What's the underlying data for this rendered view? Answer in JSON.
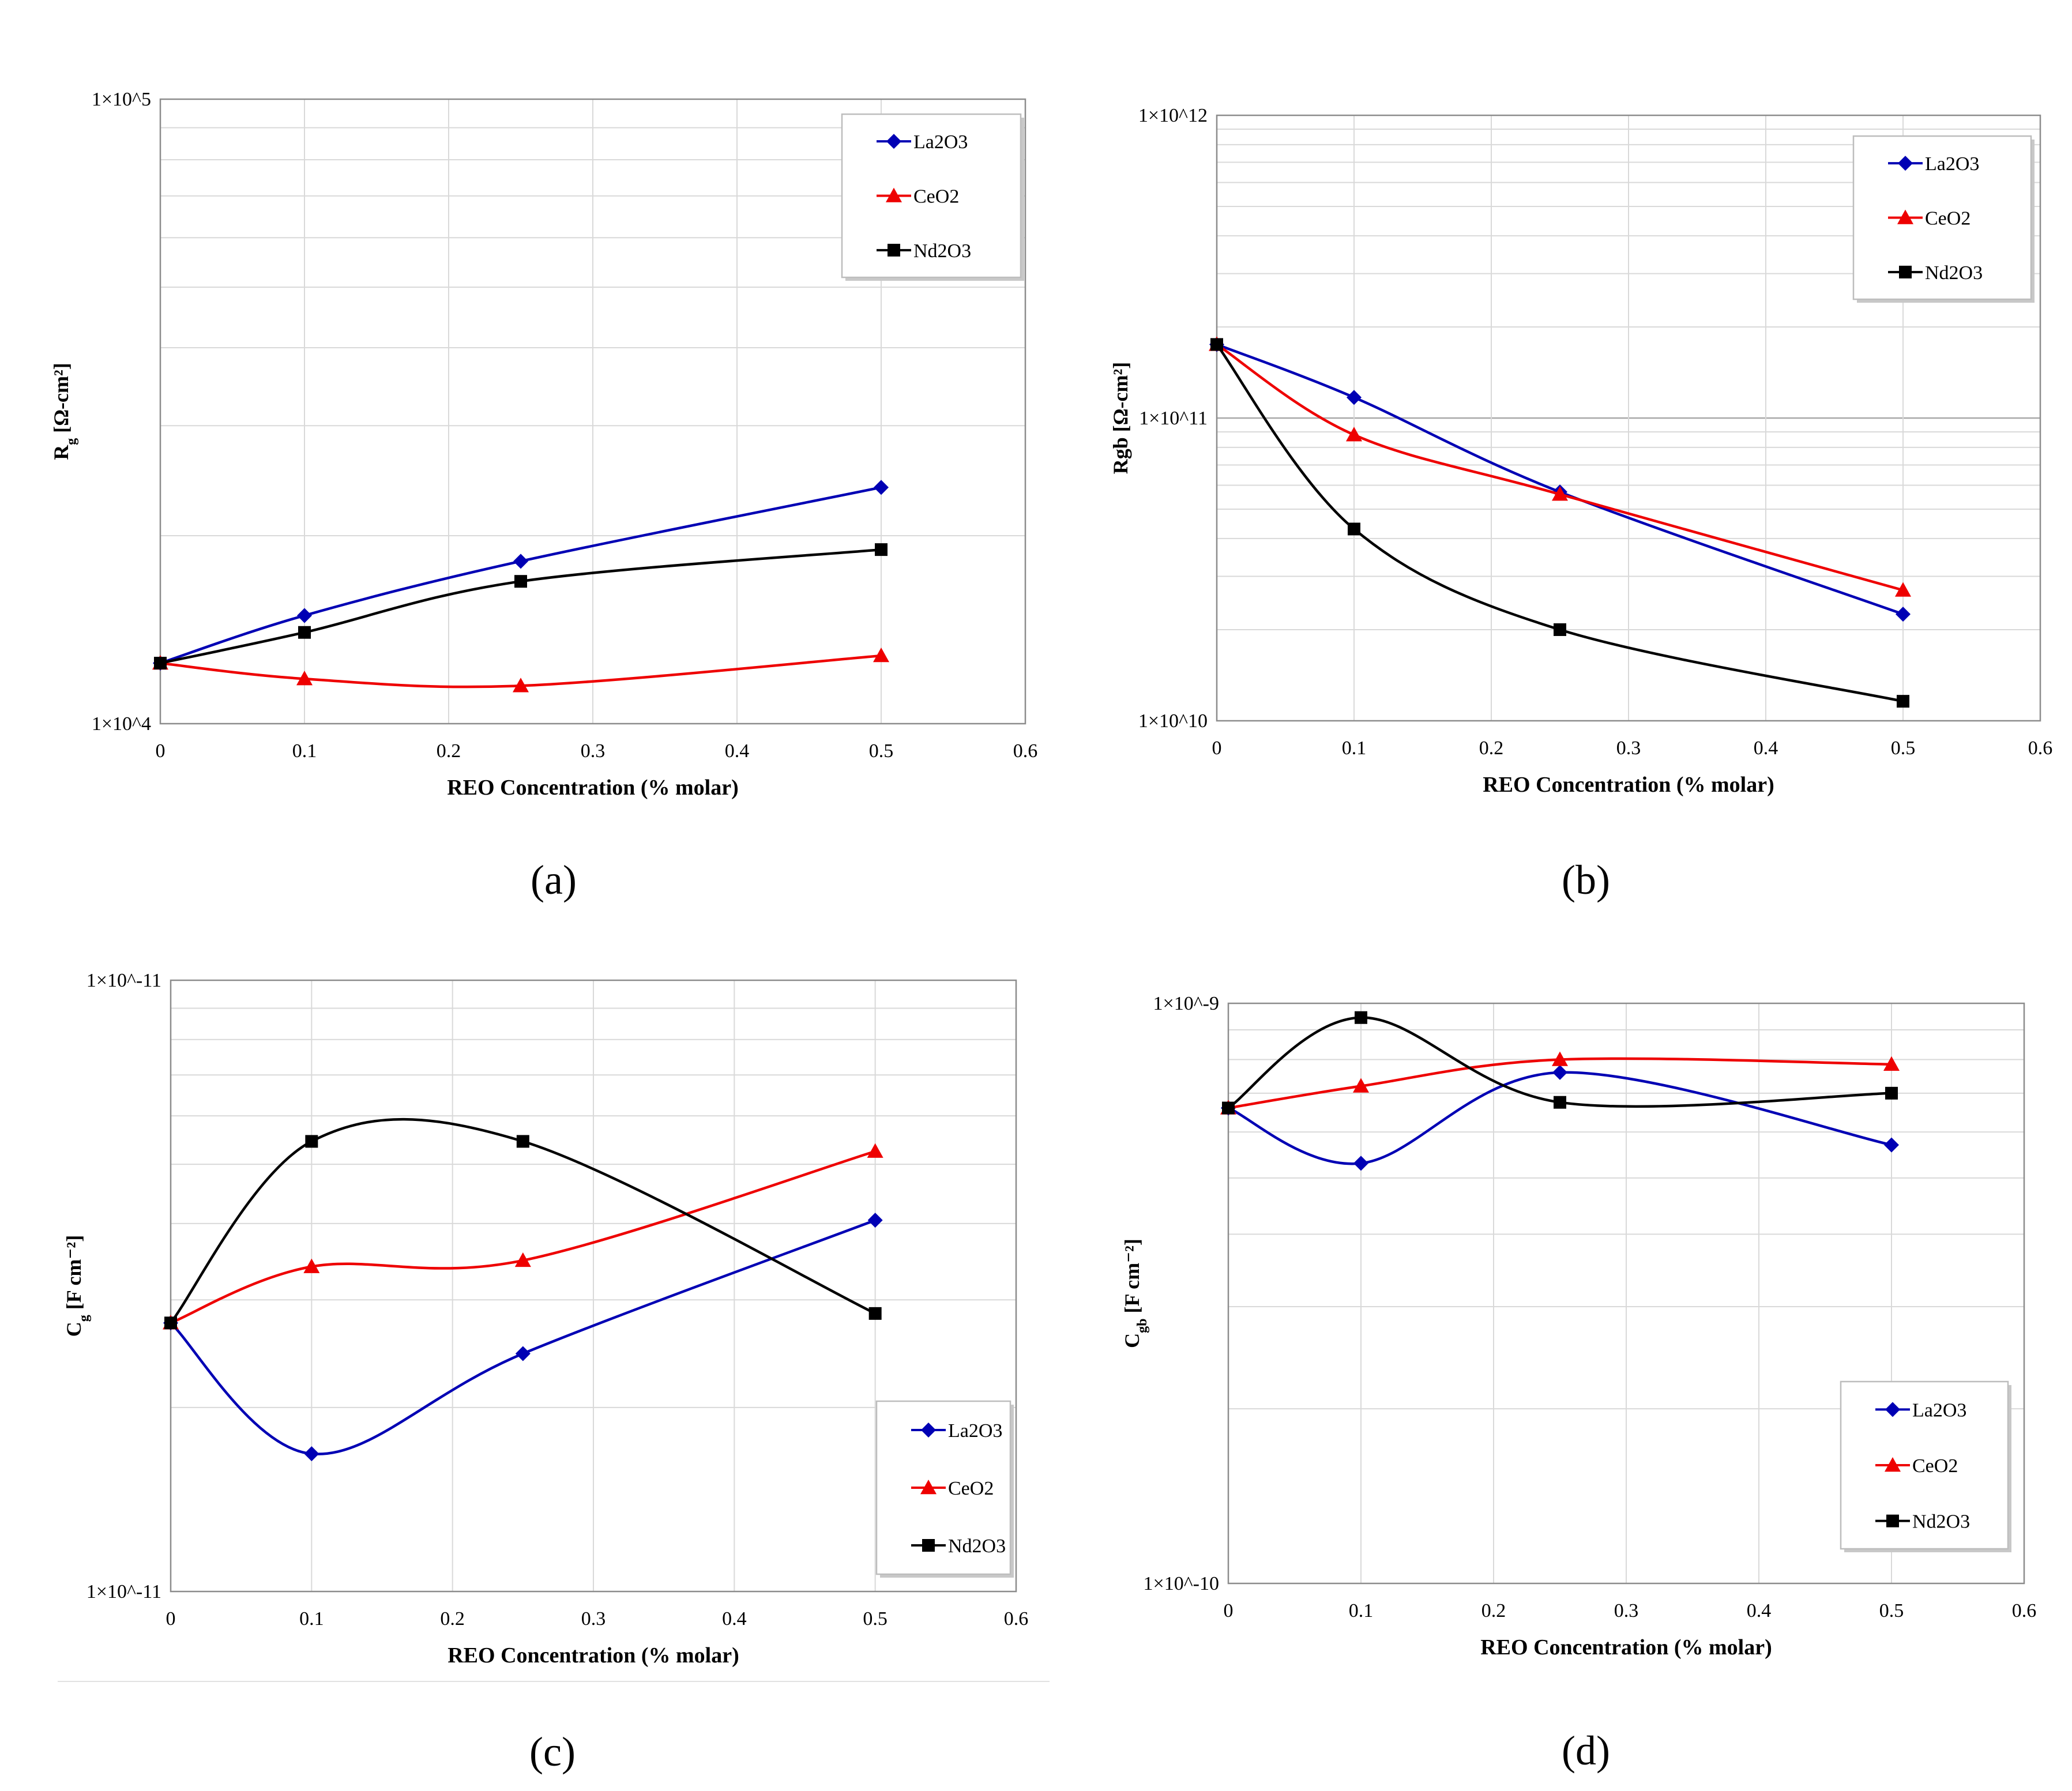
{
  "chart_data": [
    {
      "panel": "(a)",
      "type": "line",
      "yscale": "log",
      "title": "",
      "xlabel": "REO Concentration (% molar)",
      "ylabel": "Rg [Ω-cm²]",
      "ylabel_main": "R",
      "ylabel_sub": "g",
      "ylabel_rest": " [Ω-cm²]",
      "xlim": [
        0,
        0.6
      ],
      "ylim": [
        10000,
        100000
      ],
      "xticks": [
        0,
        0.1,
        0.2,
        0.3,
        0.4,
        0.5,
        0.6
      ],
      "xtick_labels": [
        "0",
        "0.1",
        "0.2",
        "0.3",
        "0.4",
        "0.5",
        "0.6"
      ],
      "ytick_labels": [
        "1×10^4",
        "1×10^5"
      ],
      "legend_position": "top-right",
      "series": [
        {
          "name": "La2O3",
          "color": "#0000b4",
          "marker": "diamond",
          "x": [
            0,
            0.1,
            0.25,
            0.5
          ],
          "y": [
            12500,
            14900,
            18200,
            23900
          ]
        },
        {
          "name": "CeO2",
          "color": "#ee0000",
          "marker": "triangle",
          "x": [
            0,
            0.1,
            0.25,
            0.5
          ],
          "y": [
            12500,
            11800,
            11500,
            12850
          ]
        },
        {
          "name": "Nd2O3",
          "color": "#000000",
          "marker": "square",
          "x": [
            0,
            0.1,
            0.25,
            0.5
          ],
          "y": [
            12500,
            14000,
            16900,
            19000
          ]
        }
      ]
    },
    {
      "panel": "(b)",
      "type": "line",
      "yscale": "log",
      "title": "",
      "xlabel": "REO Concentration (% molar)",
      "ylabel": "Rgb [Ω-cm²]",
      "ylabel_main": "Rgb",
      "ylabel_sub": "",
      "ylabel_rest": " [Ω-cm²]",
      "xlim": [
        0,
        0.6
      ],
      "ylim": [
        10000000000,
        1000000000000
      ],
      "xticks": [
        0,
        0.1,
        0.2,
        0.3,
        0.4,
        0.5,
        0.6
      ],
      "xtick_labels": [
        "0",
        "0.1",
        "0.2",
        "0.3",
        "0.4",
        "0.5",
        "0.6"
      ],
      "ytick_labels": [
        "1×10^10",
        "1×10^11",
        "1×10^12"
      ],
      "legend_position": "top-right",
      "series": [
        {
          "name": "La2O3",
          "color": "#0000b4",
          "marker": "diamond",
          "x": [
            0,
            0.1,
            0.25,
            0.5
          ],
          "y": [
            175000000000,
            117000000000,
            57000000000,
            22500000000
          ]
        },
        {
          "name": "CeO2",
          "color": "#ee0000",
          "marker": "triangle",
          "x": [
            0,
            0.1,
            0.25,
            0.5
          ],
          "y": [
            175000000000,
            88000000000,
            56000000000,
            27000000000
          ]
        },
        {
          "name": "Nd2O3",
          "color": "#000000",
          "marker": "square",
          "x": [
            0,
            0.1,
            0.25,
            0.5
          ],
          "y": [
            175000000000,
            43000000000,
            20000000000,
            11600000000
          ]
        }
      ]
    },
    {
      "panel": "(c)",
      "type": "line",
      "yscale": "log",
      "title": "",
      "xlabel": "REO Concentration (% molar)",
      "ylabel": "Cg [F cm⁻²]",
      "ylabel_main": "C",
      "ylabel_sub": "g",
      "ylabel_rest": " [F cm⁻²]",
      "xlim": [
        0,
        0.6
      ],
      "ylim": [
        1,
        10
      ],
      "xticks": [
        0,
        0.1,
        0.2,
        0.3,
        0.4,
        0.5,
        0.6
      ],
      "xtick_labels": [
        "0",
        "0.1",
        "0.2",
        "0.3",
        "0.4",
        "0.5",
        "0.6"
      ],
      "ytick_labels": [
        "1×10^-11",
        "1×10^-11"
      ],
      "legend_position": "bottom-right",
      "series": [
        {
          "name": "La2O3",
          "color": "#0000b4",
          "marker": "diamond",
          "x": [
            0,
            0.1,
            0.25,
            0.5
          ],
          "y": [
            2.75,
            1.68,
            2.45,
            4.05
          ]
        },
        {
          "name": "CeO2",
          "color": "#ee0000",
          "marker": "triangle",
          "x": [
            0,
            0.1,
            0.25,
            0.5
          ],
          "y": [
            2.75,
            3.4,
            3.48,
            5.25
          ]
        },
        {
          "name": "Nd2O3",
          "color": "#000000",
          "marker": "square",
          "x": [
            0,
            0.1,
            0.25,
            0.5
          ],
          "y": [
            2.75,
            5.45,
            5.45,
            2.85
          ]
        }
      ]
    },
    {
      "panel": "(d)",
      "type": "line",
      "yscale": "log",
      "title": "",
      "xlabel": "REO Concentration (% molar)",
      "ylabel": "Cgb [F cm⁻²]",
      "ylabel_main": "C",
      "ylabel_sub": "gb",
      "ylabel_rest": " [F cm⁻²]",
      "xlim": [
        0,
        0.6
      ],
      "ylim": [
        1e-10,
        1e-09
      ],
      "xticks": [
        0,
        0.1,
        0.2,
        0.3,
        0.4,
        0.5,
        0.6
      ],
      "xtick_labels": [
        "0",
        "0.1",
        "0.2",
        "0.3",
        "0.4",
        "0.5",
        "0.6"
      ],
      "ytick_labels": [
        "1×10^-10",
        "1×10^-9"
      ],
      "legend_position": "bottom-right",
      "series": [
        {
          "name": "La2O3",
          "color": "#0000b4",
          "marker": "diamond",
          "x": [
            0,
            0.1,
            0.25,
            0.5
          ],
          "y": [
            6.6e-10,
            5.3e-10,
            7.6e-10,
            5.7e-10
          ]
        },
        {
          "name": "CeO2",
          "color": "#ee0000",
          "marker": "triangle",
          "x": [
            0,
            0.1,
            0.25,
            0.5
          ],
          "y": [
            6.6e-10,
            7.2e-10,
            8e-10,
            7.85e-10
          ]
        },
        {
          "name": "Nd2O3",
          "color": "#000000",
          "marker": "square",
          "x": [
            0,
            0.1,
            0.25,
            0.5
          ],
          "y": [
            6.6e-10,
            9.45e-10,
            6.75e-10,
            7e-10
          ]
        }
      ]
    }
  ]
}
